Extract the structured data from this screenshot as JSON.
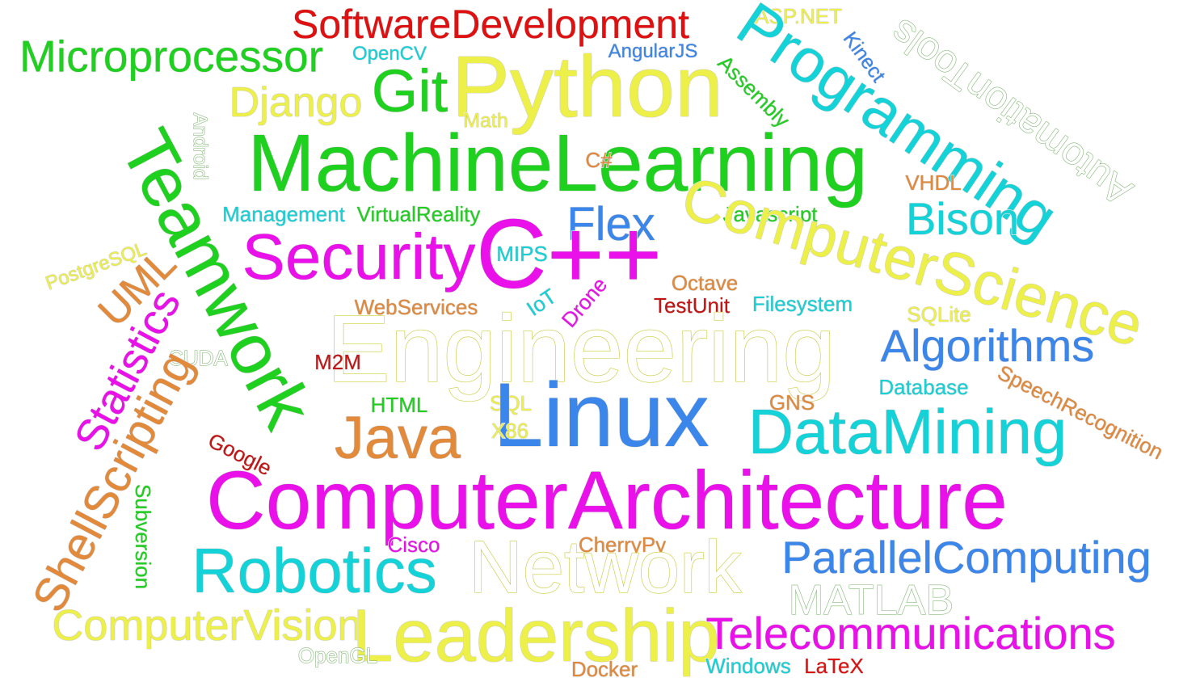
{
  "colors": {
    "red": "#e01010",
    "green": "#1ed11e",
    "yellow": "#eef04a",
    "cyan": "#14d3d8",
    "blue": "#3a86ea",
    "magenta": "#ea10ea",
    "orange": "#e2893a",
    "darkred": "#c41414",
    "palegreen": "#9fdc8f"
  },
  "words": [
    {
      "text": "SoftwareDevelopment",
      "color": "red"
    },
    {
      "text": "Microprocessor",
      "color": "green"
    },
    {
      "text": "ASP.NET",
      "color": "yellow"
    },
    {
      "text": "OpenCV",
      "color": "cyan"
    },
    {
      "text": "AngularJS",
      "color": "blue"
    },
    {
      "text": "Kinect",
      "color": "blue"
    },
    {
      "text": "AutomationTools",
      "color": "palegreen",
      "outline": true
    },
    {
      "text": "Python",
      "color": "yellow"
    },
    {
      "text": "Programming",
      "color": "cyan"
    },
    {
      "text": "Git",
      "color": "green"
    },
    {
      "text": "Django",
      "color": "yellow"
    },
    {
      "text": "Assembly",
      "color": "green"
    },
    {
      "text": "Math",
      "color": "yellow"
    },
    {
      "text": "Teamwork",
      "color": "green"
    },
    {
      "text": "Android",
      "color": "palegreen",
      "outline": true
    },
    {
      "text": "MachineLearning",
      "color": "green"
    },
    {
      "text": "C#",
      "color": "orange"
    },
    {
      "text": "VHDL",
      "color": "orange"
    },
    {
      "text": "Bison",
      "color": "cyan"
    },
    {
      "text": "Management",
      "color": "cyan"
    },
    {
      "text": "VirtualReality",
      "color": "green"
    },
    {
      "text": "Flex",
      "color": "blue"
    },
    {
      "text": "Javascript",
      "color": "green"
    },
    {
      "text": "ComputerScience",
      "color": "yellow"
    },
    {
      "text": "Security",
      "color": "magenta"
    },
    {
      "text": "C++",
      "color": "magenta"
    },
    {
      "text": "MIPS",
      "color": "cyan"
    },
    {
      "text": "PostgreSQL",
      "color": "yellow"
    },
    {
      "text": "UML",
      "color": "orange"
    },
    {
      "text": "Octave",
      "color": "orange"
    },
    {
      "text": "IoT",
      "color": "cyan"
    },
    {
      "text": "Drone",
      "color": "magenta"
    },
    {
      "text": "TestUnit",
      "color": "darkred"
    },
    {
      "text": "Filesystem",
      "color": "cyan"
    },
    {
      "text": "WebServices",
      "color": "orange"
    },
    {
      "text": "SQLite",
      "color": "yellow"
    },
    {
      "text": "Statistics",
      "color": "magenta"
    },
    {
      "text": "Engineering",
      "color": "yellow",
      "outline": true
    },
    {
      "text": "Algorithms",
      "color": "blue"
    },
    {
      "text": "CUDA",
      "color": "palegreen",
      "outline": true
    },
    {
      "text": "M2M",
      "color": "darkred"
    },
    {
      "text": "Database",
      "color": "cyan"
    },
    {
      "text": "SpeechRecognition",
      "color": "orange"
    },
    {
      "text": "ShellScripting",
      "color": "orange"
    },
    {
      "text": "HTML",
      "color": "green"
    },
    {
      "text": "SQL",
      "color": "yellow"
    },
    {
      "text": "GNS",
      "color": "orange"
    },
    {
      "text": "Linux",
      "color": "blue"
    },
    {
      "text": "DataMining",
      "color": "cyan"
    },
    {
      "text": "Java",
      "color": "orange"
    },
    {
      "text": "X86",
      "color": "yellow"
    },
    {
      "text": "Google",
      "color": "darkred"
    },
    {
      "text": "ComputerArchitecture",
      "color": "magenta"
    },
    {
      "text": "Subversion",
      "color": "green"
    },
    {
      "text": "Cisco",
      "color": "magenta"
    },
    {
      "text": "CherryPy",
      "color": "orange"
    },
    {
      "text": "Network",
      "color": "yellow",
      "outline": true
    },
    {
      "text": "ParallelComputing",
      "color": "blue"
    },
    {
      "text": "Robotics",
      "color": "cyan"
    },
    {
      "text": "MATLAB",
      "color": "palegreen",
      "outline": true
    },
    {
      "text": "ComputerVision",
      "color": "yellow"
    },
    {
      "text": "Leadership",
      "color": "yellow"
    },
    {
      "text": "Telecommunications",
      "color": "magenta"
    },
    {
      "text": "OpenGL",
      "color": "palegreen",
      "outline": true
    },
    {
      "text": "Docker",
      "color": "orange"
    },
    {
      "text": "Windows",
      "color": "cyan"
    },
    {
      "text": "LaTeX",
      "color": "red"
    }
  ]
}
